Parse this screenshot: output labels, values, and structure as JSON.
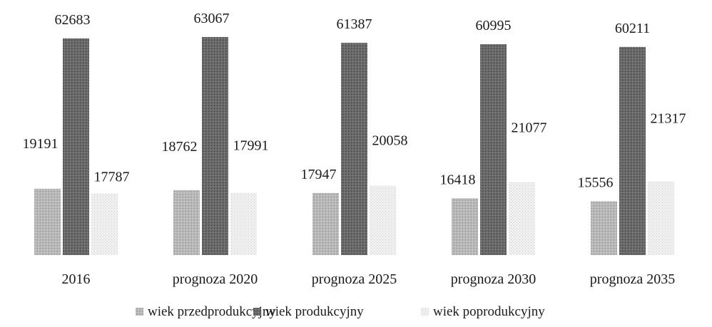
{
  "chart_data": {
    "type": "bar",
    "categories": [
      "2016",
      "prognoza 2020",
      "prognoza 2025",
      "prognoza 2030",
      "prognoza 2035"
    ],
    "series": [
      {
        "name": "wiek przedprodukcyjny",
        "values": [
          19191,
          18762,
          17947,
          16418,
          15556
        ],
        "color": "#bdbdbd"
      },
      {
        "name": "wiek produkcyjny",
        "values": [
          62683,
          63067,
          61387,
          60995,
          60211
        ],
        "color": "#6e6e6e"
      },
      {
        "name": "wiek poprodukcyjny",
        "values": [
          17787,
          17991,
          20058,
          21077,
          21317
        ],
        "color": "#e8e8e8"
      }
    ],
    "value_labels": [
      [
        "19191",
        "18762",
        "17947",
        "16418",
        "15556"
      ],
      [
        "62683",
        "63067",
        "61387",
        "60995",
        "60211"
      ],
      [
        "17787",
        "17991",
        "20058",
        "21077",
        "21317"
      ]
    ],
    "ylim": [
      0,
      63067
    ],
    "grid": false,
    "legend_position": "bottom"
  }
}
